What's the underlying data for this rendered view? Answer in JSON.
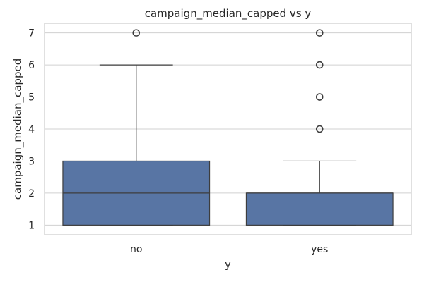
{
  "chart_data": {
    "type": "box",
    "title": "campaign_median_capped vs y",
    "xlabel": "y",
    "ylabel": "campaign_median_capped",
    "categories": [
      "no",
      "yes"
    ],
    "boxes": [
      {
        "category": "no",
        "whisker_low": 1,
        "q1": 1,
        "median": 2,
        "q3": 3,
        "whisker_high": 6,
        "outliers": [
          7
        ]
      },
      {
        "category": "yes",
        "whisker_low": 1,
        "q1": 1,
        "median": 2,
        "q3": 2,
        "whisker_high": 3,
        "outliers": [
          4,
          5,
          6,
          7
        ]
      }
    ],
    "ylim": [
      0.7,
      7.3
    ],
    "yticks": [
      1,
      2,
      3,
      4,
      5,
      6,
      7
    ],
    "grid": true,
    "colors": {
      "box_fill": "#5875a4",
      "line": "#3d3d3d",
      "grid": "#d0d0d0",
      "frame": "#cccccc"
    }
  }
}
